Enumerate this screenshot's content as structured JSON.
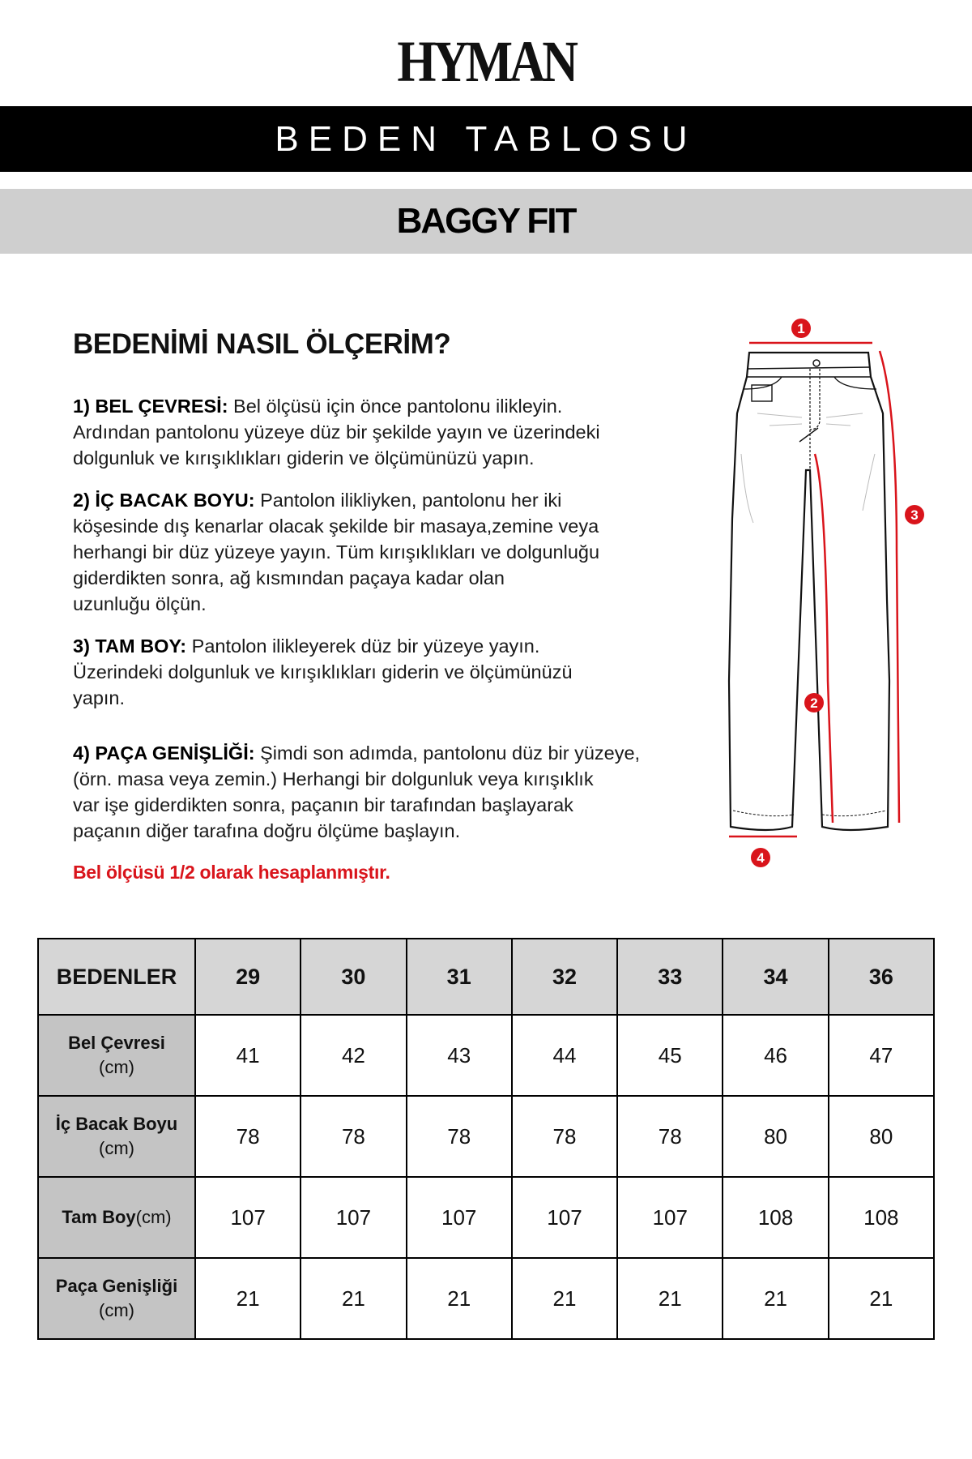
{
  "brand": {
    "logo": "HYMAN"
  },
  "header": {
    "title": "BEDEN TABLOSU",
    "subtitle": "BAGGY FIT"
  },
  "howto": {
    "title": "BEDENİMİ NASIL ÖLÇERİM?",
    "steps": [
      {
        "label": "1) BEL ÇEVRESİ:",
        "lines": [
          " Bel ölçüsü için önce pantolonu ilikleyin.",
          "Ardından pantolonu yüzeye düz bir şekilde yayın ve üzerindeki",
          "dolgunluk ve kırışıklıkları giderin ve ölçümünüzü yapın."
        ]
      },
      {
        "label": "2) İÇ BACAK BOYU:",
        "lines": [
          " Pantolon ilikliyken, pantolonu her iki",
          "köşesinde dış kenarlar olacak şekilde bir masaya,zemine veya",
          "herhangi bir düz yüzeye yayın. Tüm kırışıklıkları ve dolgunluğu",
          "giderdikten sonra, ağ kısmından paçaya kadar olan",
          "uzunluğu ölçün."
        ]
      },
      {
        "label": "3) TAM BOY:",
        "lines": [
          " Pantolon ilikleyerek düz bir yüzeye yayın.",
          "Üzerindeki dolgunluk ve kırışıklıkları giderin ve ölçümünüzü",
          "yapın."
        ]
      },
      {
        "label": "4) PAÇA GENİŞLİĞİ:",
        "lines": [
          " Şimdi son adımda, pantolonu düz bir yüzeye,",
          "(örn. masa veya zemin.) Herhangi bir dolgunluk veya kırışıklık",
          "var işe giderdikten sonra, paçanın bir tarafından başlayarak",
          "paçanın diğer tarafına doğru ölçüme başlayın."
        ]
      }
    ],
    "note": "Bel ölçüsü 1/2 olarak hesaplanmıştır."
  },
  "diagram": {
    "markers": [
      "1",
      "2",
      "3",
      "4"
    ],
    "accent": "#d9141b"
  },
  "table": {
    "header": "BEDENLER",
    "sizes": [
      "29",
      "30",
      "31",
      "32",
      "33",
      "34",
      "36"
    ],
    "rows": [
      {
        "name": "Bel Çevresi",
        "unit": "(cm)",
        "values": [
          "41",
          "42",
          "43",
          "44",
          "45",
          "46",
          "47"
        ]
      },
      {
        "name": "İç Bacak Boyu",
        "unit": "(cm)",
        "values": [
          "78",
          "78",
          "78",
          "78",
          "78",
          "80",
          "80"
        ]
      },
      {
        "name": "Tam Boy",
        "unit": "(cm)",
        "values": [
          "107",
          "107",
          "107",
          "107",
          "107",
          "108",
          "108"
        ]
      },
      {
        "name": "Paça Genişliği",
        "unit": "(cm)",
        "values": [
          "21",
          "21",
          "21",
          "21",
          "21",
          "21",
          "21"
        ]
      }
    ]
  }
}
